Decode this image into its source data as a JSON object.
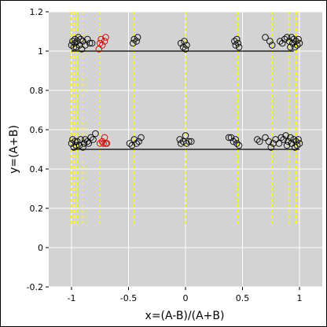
{
  "chart_data": {
    "type": "scatter",
    "title": "",
    "xlabel": "x=(A-B)/(A+B)",
    "ylabel": "y=(A+B)",
    "xlim": [
      -1.2,
      1.2
    ],
    "ylim": [
      -0.2,
      1.2
    ],
    "xticks": [
      -1,
      -0.5,
      0,
      0.5,
      1
    ],
    "xtick_labels": [
      "-1",
      "-0.5",
      "0",
      "0.5",
      "1"
    ],
    "yticks": [
      -0.2,
      0,
      0.2,
      0.4,
      0.6,
      0.8,
      1,
      1.2
    ],
    "ytick_labels": [
      "-0.2",
      "0",
      "0.2",
      "0.4",
      "0.6",
      "0.8",
      "1",
      "1.2"
    ],
    "grid": true,
    "colors": {
      "background": "#d3d3d3",
      "grid": "#ffffff",
      "points": "#000000",
      "highlight_points": "#cc0000",
      "vertical_lines": "#ffff00",
      "reference_lines": "#000000"
    },
    "reference_lines": [
      {
        "y": 1.0,
        "x": [
          -1,
          0.95
        ]
      },
      {
        "y": 0.5,
        "x": [
          -1,
          1
        ]
      }
    ],
    "vertical_lines": {
      "x": [
        -1.0,
        -0.98,
        -0.97,
        -0.95,
        -0.9,
        -0.75,
        -0.45,
        0.0,
        0.46,
        0.76,
        0.91,
        0.97,
        0.99
      ],
      "y_range": [
        0.12,
        1.2
      ]
    },
    "series": [
      {
        "color": "black",
        "points": [
          [
            -1.0,
            1.03
          ],
          [
            -0.99,
            1.05
          ],
          [
            -0.98,
            1.02
          ],
          [
            -0.97,
            1.06
          ],
          [
            -0.97,
            1.04
          ],
          [
            -0.96,
            1.02
          ],
          [
            -0.95,
            1.05
          ],
          [
            -0.94,
            1.07
          ],
          [
            -0.93,
            1.03
          ],
          [
            -0.92,
            1.06
          ],
          [
            -0.91,
            1.01
          ],
          [
            -0.9,
            1.05
          ],
          [
            -0.88,
            1.03
          ],
          [
            -0.86,
            1.06
          ],
          [
            -0.84,
            1.04
          ],
          [
            -0.82,
            1.04
          ],
          [
            -0.46,
            1.04
          ],
          [
            -0.45,
            1.06
          ],
          [
            -0.43,
            1.05
          ],
          [
            -0.42,
            1.07
          ],
          [
            -0.04,
            1.04
          ],
          [
            -0.02,
            1.02
          ],
          [
            -0.01,
            1.05
          ],
          [
            0.0,
            1.01
          ],
          [
            0.01,
            1.03
          ],
          [
            0.43,
            1.05
          ],
          [
            0.44,
            1.03
          ],
          [
            0.45,
            1.06
          ],
          [
            0.46,
            1.04
          ],
          [
            0.47,
            1.02
          ],
          [
            0.7,
            1.07
          ],
          [
            0.74,
            1.05
          ],
          [
            0.76,
            1.03
          ],
          [
            0.83,
            1.05
          ],
          [
            0.85,
            1.04
          ],
          [
            0.87,
            1.06
          ],
          [
            0.89,
            1.07
          ],
          [
            0.91,
            1.05
          ],
          [
            0.92,
            1.02
          ],
          [
            0.93,
            1.07
          ],
          [
            0.94,
            1.04
          ],
          [
            0.95,
            1.06
          ],
          [
            0.96,
            1.02
          ],
          [
            0.97,
            1.05
          ],
          [
            0.98,
            1.03
          ],
          [
            0.99,
            1.06
          ],
          [
            1.0,
            1.04
          ],
          [
            -1.0,
            0.53
          ],
          [
            -0.99,
            0.55
          ],
          [
            -0.98,
            0.51
          ],
          [
            -0.97,
            0.54
          ],
          [
            -0.96,
            0.52
          ],
          [
            -0.95,
            0.54
          ],
          [
            -0.93,
            0.52
          ],
          [
            -0.92,
            0.55
          ],
          [
            -0.9,
            0.51
          ],
          [
            -0.89,
            0.53
          ],
          [
            -0.88,
            0.55
          ],
          [
            -0.86,
            0.54
          ],
          [
            -0.85,
            0.53
          ],
          [
            -0.83,
            0.56
          ],
          [
            -0.81,
            0.55
          ],
          [
            -0.79,
            0.58
          ],
          [
            -0.49,
            0.53
          ],
          [
            -0.47,
            0.52
          ],
          [
            -0.45,
            0.55
          ],
          [
            -0.43,
            0.53
          ],
          [
            -0.41,
            0.54
          ],
          [
            -0.39,
            0.56
          ],
          [
            -0.05,
            0.55
          ],
          [
            -0.04,
            0.53
          ],
          [
            -0.02,
            0.54
          ],
          [
            0.0,
            0.57
          ],
          [
            0.01,
            0.53
          ],
          [
            0.03,
            0.54
          ],
          [
            0.05,
            0.54
          ],
          [
            0.38,
            0.56
          ],
          [
            0.4,
            0.56
          ],
          [
            0.42,
            0.54
          ],
          [
            0.44,
            0.55
          ],
          [
            0.45,
            0.53
          ],
          [
            0.47,
            0.52
          ],
          [
            0.63,
            0.55
          ],
          [
            0.65,
            0.54
          ],
          [
            0.7,
            0.56
          ],
          [
            0.73,
            0.54
          ],
          [
            0.75,
            0.51
          ],
          [
            0.77,
            0.53
          ],
          [
            0.79,
            0.55
          ],
          [
            0.82,
            0.53
          ],
          [
            0.84,
            0.56
          ],
          [
            0.86,
            0.55
          ],
          [
            0.88,
            0.57
          ],
          [
            0.89,
            0.52
          ],
          [
            0.9,
            0.54
          ],
          [
            0.92,
            0.56
          ],
          [
            0.93,
            0.53
          ],
          [
            0.95,
            0.55
          ],
          [
            0.96,
            0.51
          ],
          [
            0.97,
            0.54
          ],
          [
            0.98,
            0.52
          ],
          [
            0.99,
            0.55
          ],
          [
            1.0,
            0.53
          ]
        ]
      },
      {
        "color": "red",
        "points": [
          [
            -0.76,
            1.01
          ],
          [
            -0.75,
            1.04
          ],
          [
            -0.74,
            1.06
          ],
          [
            -0.73,
            1.03
          ],
          [
            -0.71,
            1.05
          ],
          [
            -0.7,
            1.07
          ],
          [
            -0.75,
            0.53
          ],
          [
            -0.73,
            0.54
          ],
          [
            -0.72,
            0.53
          ],
          [
            -0.71,
            0.56
          ],
          [
            -0.7,
            0.53
          ],
          [
            -0.69,
            0.53
          ]
        ]
      }
    ]
  }
}
